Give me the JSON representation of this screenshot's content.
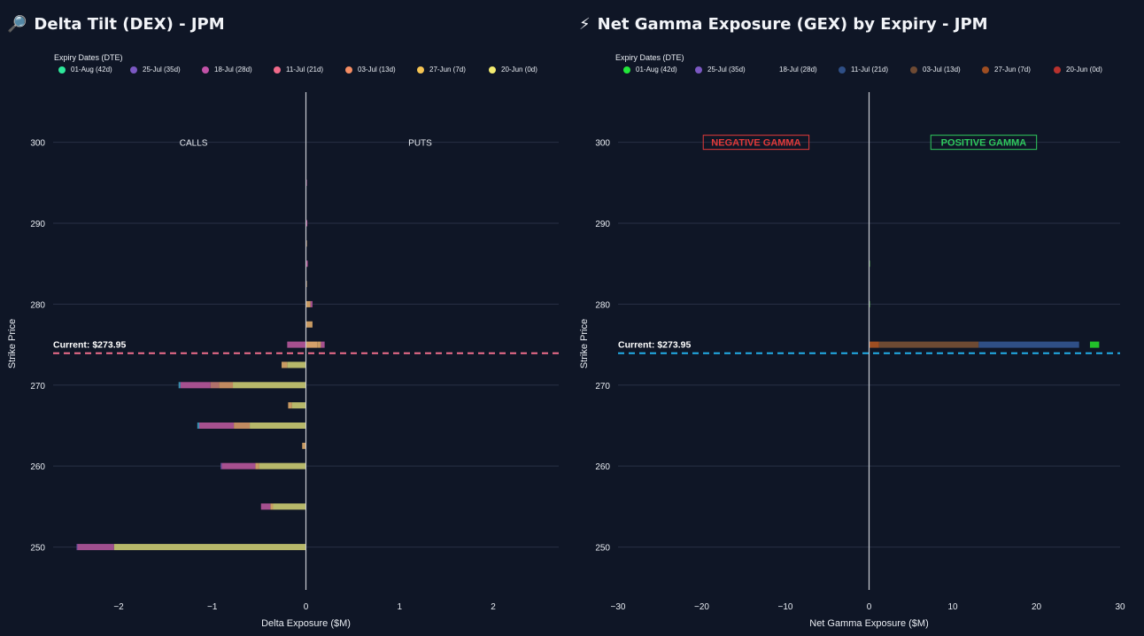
{
  "colors": {
    "bg": "#0f1626",
    "grid": "#283045",
    "zero": "#c9ccd2",
    "dex_current": "#ef6d8c",
    "gex_current": "#22aee9",
    "negative": "#e23a3a",
    "positive": "#2fca5e"
  },
  "chart_data": [
    {
      "type": "bar",
      "orientation": "horizontal",
      "stacked": true,
      "title": "Delta Tilt (DEX) - JPM",
      "title_icon": "magnifier-icon",
      "xlabel": "Delta Exposure ($M)",
      "ylabel": "Strike Price",
      "xlim": [
        -2.7,
        2.7
      ],
      "ylim": [
        244.7,
        306.2
      ],
      "xticks": [
        -2,
        -1,
        0,
        1,
        2
      ],
      "xtick_labels": [
        "−2",
        "−1",
        "0",
        "1",
        "2"
      ],
      "yticks": [
        250,
        260,
        270,
        280,
        290,
        300
      ],
      "grid": true,
      "legend_title": "Expiry Dates (DTE)",
      "legend_placement": "top",
      "legend": [
        {
          "label": "01-Aug (42d)",
          "color": "#2ee89b"
        },
        {
          "label": "25-Jul (35d)",
          "color": "#7b58c2"
        },
        {
          "label": "18-Jul (28d)",
          "color": "#c252a8"
        },
        {
          "label": "11-Jul (21d)",
          "color": "#f06a8a"
        },
        {
          "label": "03-Jul (13d)",
          "color": "#f58d63"
        },
        {
          "label": "27-Jun (7d)",
          "color": "#f5c453"
        },
        {
          "label": "20-Jun (0d)",
          "color": "#f3eb70"
        }
      ],
      "annotations": [
        {
          "text": "CALLS",
          "x": -1.2,
          "y": 300
        },
        {
          "text": "PUTS",
          "x": 1.22,
          "y": 300
        }
      ],
      "current_price": {
        "value": 273.95,
        "label": "Current: $273.95"
      },
      "bars": [
        {
          "strike": 250,
          "segments": [
            {
              "color": "#b7b86a",
              "from": 0,
              "to": -2.05
            },
            {
              "color": "#9f4f8e",
              "from": -2.05,
              "to": -2.44
            },
            {
              "color": "#5d4a9c",
              "from": -2.44,
              "to": -2.45
            }
          ]
        },
        {
          "strike": 255,
          "segments": [
            {
              "color": "#b7b86a",
              "from": 0,
              "to": -0.35
            },
            {
              "color": "#c89a62",
              "from": -0.35,
              "to": -0.38
            },
            {
              "color": "#a6508f",
              "from": -0.38,
              "to": -0.48
            }
          ]
        },
        {
          "strike": 260,
          "segments": [
            {
              "color": "#b7b86a",
              "from": 0,
              "to": -0.5
            },
            {
              "color": "#c89a62",
              "from": -0.5,
              "to": -0.54
            },
            {
              "color": "#a6508f",
              "from": -0.54,
              "to": -0.9
            },
            {
              "color": "#6a55b0",
              "from": -0.9,
              "to": -0.91
            }
          ]
        },
        {
          "strike": 262.5,
          "segments": [
            {
              "color": "#c89a62",
              "from": 0,
              "to": -0.04
            }
          ]
        },
        {
          "strike": 265,
          "segments": [
            {
              "color": "#b7b86a",
              "from": 0,
              "to": -0.6
            },
            {
              "color": "#c08a60",
              "from": -0.6,
              "to": -0.77
            },
            {
              "color": "#a6508f",
              "from": -0.77,
              "to": -1.14
            },
            {
              "color": "#3a8fb0",
              "from": -1.14,
              "to": -1.16
            }
          ]
        },
        {
          "strike": 267.5,
          "segments": [
            {
              "color": "#b7b86a",
              "from": 0,
              "to": -0.15
            },
            {
              "color": "#c89a62",
              "from": -0.15,
              "to": -0.19
            }
          ]
        },
        {
          "strike": 270,
          "segments": [
            {
              "color": "#b7b86a",
              "from": 0,
              "to": -0.78
            },
            {
              "color": "#c08a60",
              "from": -0.78,
              "to": -0.93
            },
            {
              "color": "#b0706a",
              "from": -0.93,
              "to": -1.02
            },
            {
              "color": "#a6508f",
              "from": -1.02,
              "to": -1.34
            },
            {
              "color": "#3a8fb0",
              "from": -1.34,
              "to": -1.36
            }
          ]
        },
        {
          "strike": 272.5,
          "segments": [
            {
              "color": "#b7b86a",
              "from": 0,
              "to": -0.2
            },
            {
              "color": "#c89a62",
              "from": -0.2,
              "to": -0.26
            }
          ]
        },
        {
          "strike": 275,
          "segments": [
            {
              "color": "#a6508f",
              "from": 0,
              "to": -0.2
            },
            {
              "color": "#d4a06a",
              "from": 0,
              "to": 0.12
            },
            {
              "color": "#c89a62",
              "from": 0.12,
              "to": 0.16
            },
            {
              "color": "#a6508f",
              "from": 0.16,
              "to": 0.2
            }
          ]
        },
        {
          "strike": 277.5,
          "segments": [
            {
              "color": "#c89a62",
              "from": 0,
              "to": 0.07
            }
          ]
        },
        {
          "strike": 280,
          "segments": [
            {
              "color": "#c89a62",
              "from": 0,
              "to": 0.05
            },
            {
              "color": "#a6508f",
              "from": 0.05,
              "to": 0.07
            }
          ]
        },
        {
          "strike": 282.5,
          "segments": [
            {
              "color": "#c89a62",
              "from": 0,
              "to": 0.01
            }
          ]
        },
        {
          "strike": 285,
          "segments": [
            {
              "color": "#a6508f",
              "from": 0,
              "to": 0.02
            }
          ]
        },
        {
          "strike": 287.5,
          "segments": [
            {
              "color": "#c89a62",
              "from": 0,
              "to": 0.01
            }
          ]
        },
        {
          "strike": 290,
          "segments": [
            {
              "color": "#a6508f",
              "from": 0,
              "to": 0.015
            }
          ]
        },
        {
          "strike": 295,
          "segments": [
            {
              "color": "#a6508f",
              "from": 0,
              "to": 0.01
            }
          ]
        }
      ]
    },
    {
      "type": "bar",
      "orientation": "horizontal",
      "stacked": true,
      "title": "Net Gamma Exposure (GEX) by Expiry - JPM",
      "title_icon": "lightning-icon",
      "xlabel": "Net Gamma Exposure ($M)",
      "ylabel": "Strike Price",
      "xlim": [
        -30,
        30
      ],
      "ylim": [
        244.7,
        306.2
      ],
      "xticks": [
        -30,
        -20,
        -10,
        0,
        10,
        20,
        30
      ],
      "xtick_labels": [
        "−30",
        "−20",
        "−10",
        "0",
        "10",
        "20",
        "30"
      ],
      "yticks": [
        250,
        260,
        270,
        280,
        290,
        300
      ],
      "grid": true,
      "legend_title": "Expiry Dates (DTE)",
      "legend_placement": "top",
      "legend": [
        {
          "label": "01-Aug (42d)",
          "color": "#22e83a"
        },
        {
          "label": "25-Jul (35d)",
          "color": "#7b58c2"
        },
        {
          "label": "18-Jul (28d)",
          "color": ""
        },
        {
          "label": "11-Jul (21d)",
          "color": "#2f4f86"
        },
        {
          "label": "03-Jul (13d)",
          "color": "#6e4a33"
        },
        {
          "label": "27-Jun (7d)",
          "color": "#9e4e22"
        },
        {
          "label": "20-Jun (0d)",
          "color": "#b8322e"
        }
      ],
      "annotations": [
        {
          "text": "NEGATIVE GAMMA",
          "x": -13.5,
          "y": 300,
          "color": "#e23a3a"
        },
        {
          "text": "POSITIVE GAMMA",
          "x": 13.7,
          "y": 300,
          "color": "#2fca5e"
        }
      ],
      "current_price": {
        "value": 273.95,
        "label": "Current: $273.95"
      },
      "bars": [
        {
          "strike": 275,
          "segments": [
            {
              "color": "#9e4e22",
              "from": 0,
              "to": 1.2
            },
            {
              "color": "#6e4a33",
              "from": 1.2,
              "to": 13.1
            },
            {
              "color": "#2f4f86",
              "from": 13.1,
              "to": 25.1
            }
          ]
        },
        {
          "strike": 275,
          "segments": [
            {
              "color": "#22c02a",
              "from": 26.4,
              "to": 27.5
            }
          ]
        },
        {
          "strike": 280,
          "segments": [
            {
              "color": "#3a8a3a",
              "from": 0,
              "to": 0.12
            }
          ]
        },
        {
          "strike": 285,
          "segments": [
            {
              "color": "#3a8a3a",
              "from": 0,
              "to": 0.12
            }
          ]
        }
      ]
    }
  ]
}
